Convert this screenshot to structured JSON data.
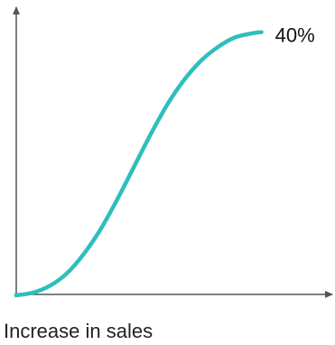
{
  "chart_data": {
    "type": "line",
    "xlabel": "Increase in sales",
    "ylabel": "",
    "end_label": "40%",
    "shape": "s-curve",
    "xlim": [
      0,
      1
    ],
    "ylim": [
      0,
      1
    ],
    "series": [
      {
        "color": "#2ebfbd",
        "points": [
          [
            0.0,
            0.0
          ],
          [
            0.05,
            0.01
          ],
          [
            0.1,
            0.035
          ],
          [
            0.15,
            0.08
          ],
          [
            0.2,
            0.15
          ],
          [
            0.25,
            0.24
          ],
          [
            0.3,
            0.35
          ],
          [
            0.35,
            0.47
          ],
          [
            0.4,
            0.59
          ],
          [
            0.45,
            0.7
          ],
          [
            0.5,
            0.79
          ],
          [
            0.55,
            0.86
          ],
          [
            0.6,
            0.91
          ],
          [
            0.65,
            0.945
          ],
          [
            0.7,
            0.96
          ],
          [
            0.73,
            0.965
          ]
        ]
      }
    ],
    "axis_color": "#555555",
    "grid": false
  }
}
